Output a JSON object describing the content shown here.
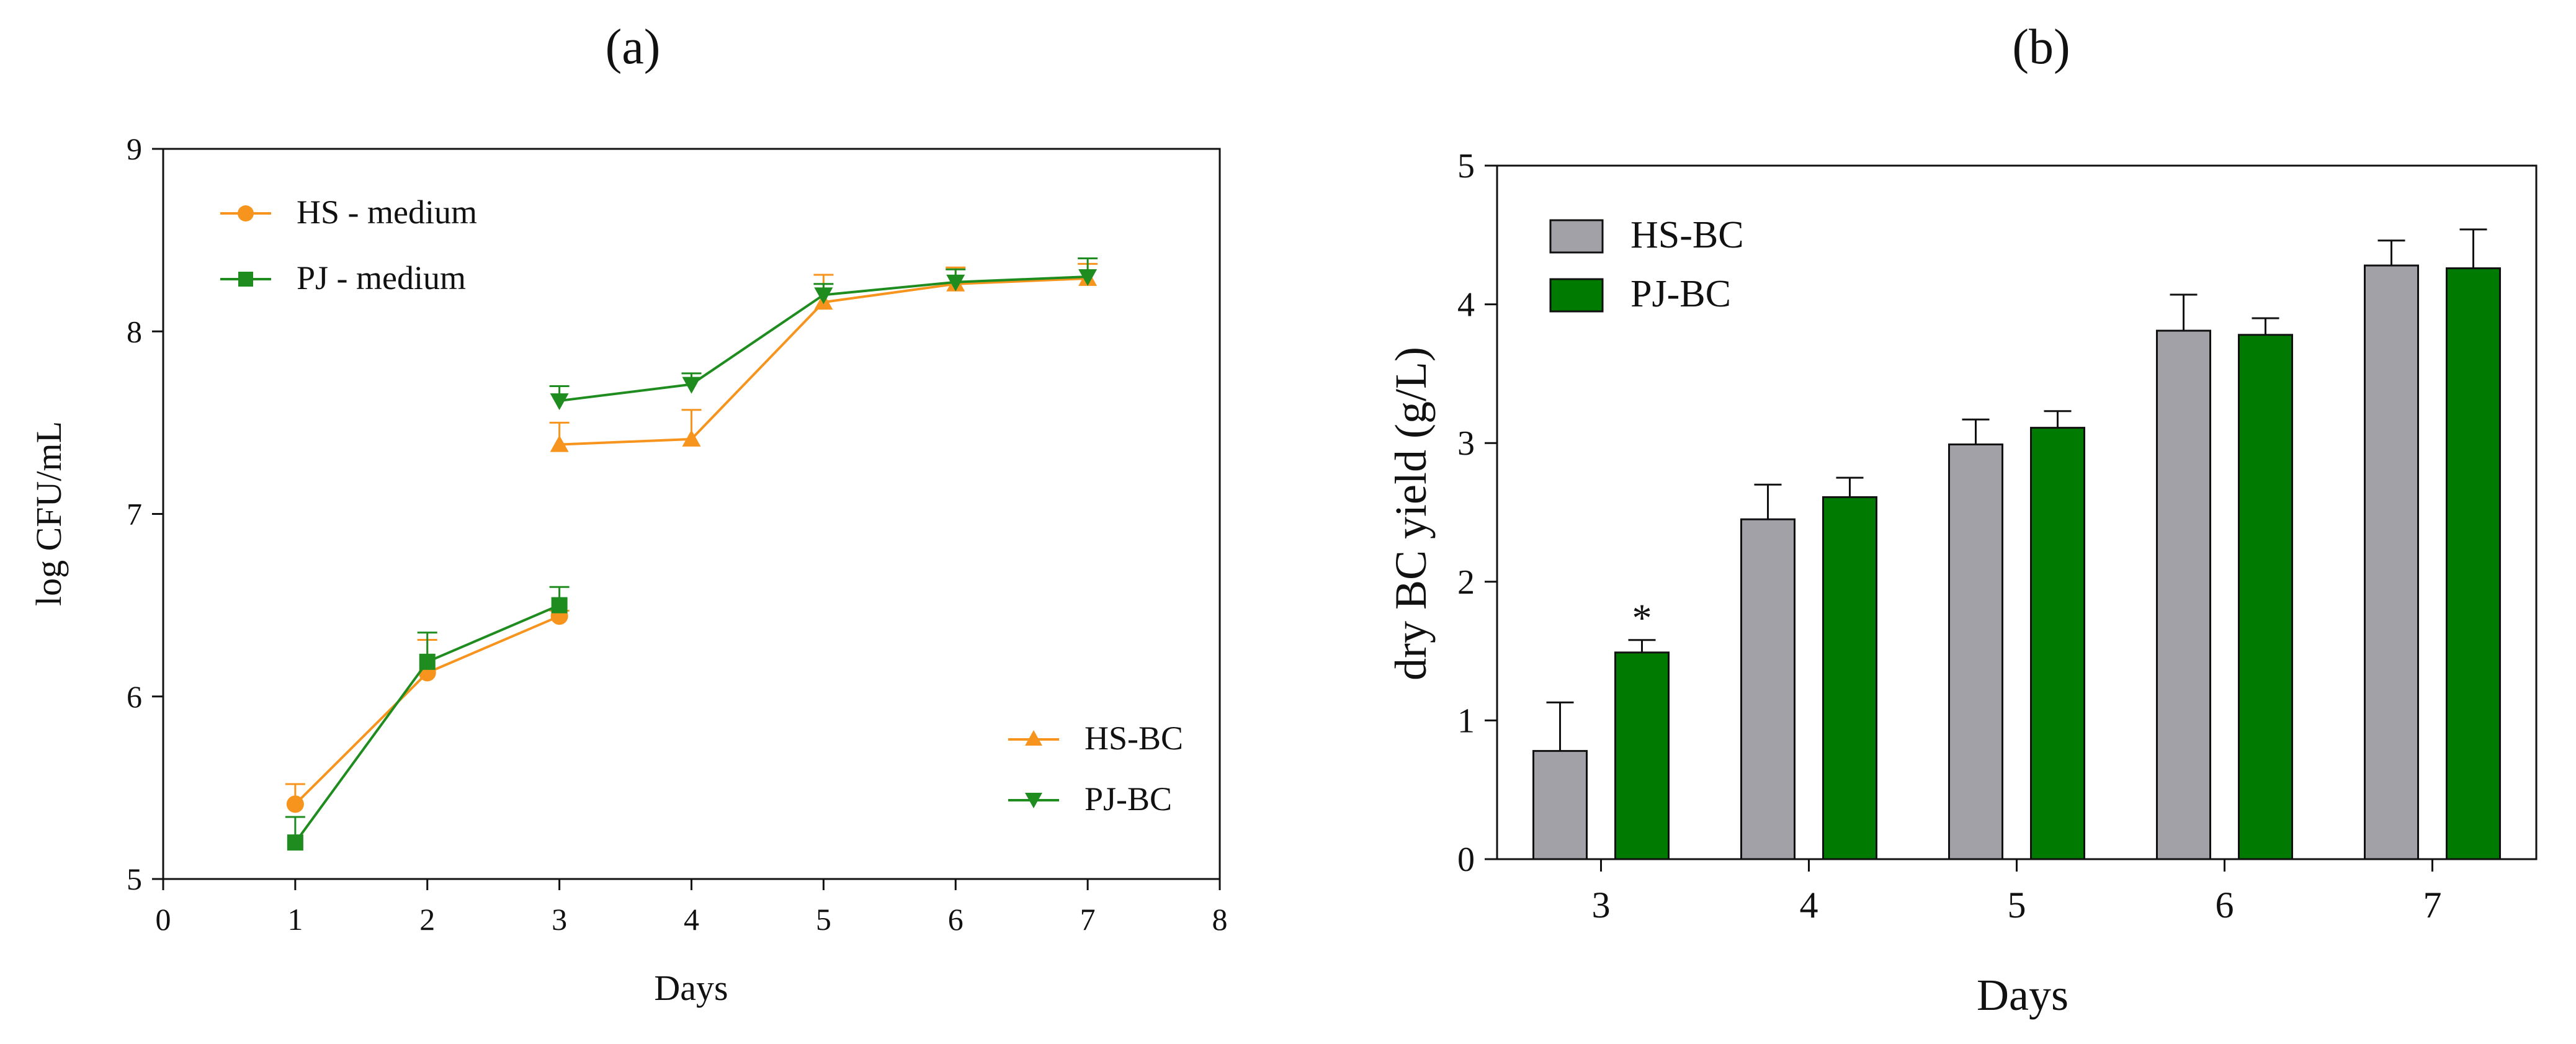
{
  "chart_data": [
    {
      "type": "line",
      "panel_label": "a",
      "title": "(a)",
      "xlabel": "Days",
      "ylabel": "log CFU/mL",
      "xlim": [
        0,
        8
      ],
      "ylim": [
        5,
        9
      ],
      "xticks": [
        "0",
        "1",
        "2",
        "3",
        "4",
        "5",
        "6",
        "7",
        "8"
      ],
      "yticks": [
        "5",
        "6",
        "7",
        "8",
        "9"
      ],
      "legend_top": {
        "position": "top-left",
        "entries": [
          "HS - medium",
          "PJ - medium"
        ]
      },
      "legend_bottom": {
        "position": "bottom-right",
        "entries": [
          "HS-BC",
          "PJ-BC"
        ]
      },
      "series": [
        {
          "name": "HS - medium",
          "color": "#F7941D",
          "marker": "circle",
          "x": [
            1,
            2,
            3
          ],
          "values": [
            5.41,
            6.13,
            6.44
          ],
          "err": [
            0.11,
            0.18,
            0.03
          ]
        },
        {
          "name": "PJ - medium",
          "color": "#1E8C1E",
          "marker": "square",
          "x": [
            1,
            2,
            3
          ],
          "values": [
            5.2,
            6.19,
            6.5
          ],
          "err": [
            0.14,
            0.16,
            0.1
          ]
        },
        {
          "name": "HS-BC",
          "color": "#F7941D",
          "marker": "triangle-up",
          "x": [
            3,
            4,
            5,
            6,
            7
          ],
          "values": [
            7.38,
            7.41,
            8.16,
            8.26,
            8.29
          ],
          "err": [
            0.12,
            0.16,
            0.15,
            0.09,
            0.08
          ]
        },
        {
          "name": "PJ-BC",
          "color": "#1E8C1E",
          "marker": "triangle-down",
          "x": [
            3,
            4,
            5,
            6,
            7
          ],
          "values": [
            7.62,
            7.71,
            8.2,
            8.27,
            8.3
          ],
          "err": [
            0.08,
            0.06,
            0.06,
            0.07,
            0.1
          ]
        }
      ]
    },
    {
      "type": "bar",
      "panel_label": "b",
      "title": "(b)",
      "xlabel": "Days",
      "ylabel": "dry BC yield (g/L)",
      "ylim": [
        0,
        5
      ],
      "yticks": [
        "0",
        "1",
        "2",
        "3",
        "4",
        "5"
      ],
      "categories": [
        "3",
        "4",
        "5",
        "6",
        "7"
      ],
      "legend": {
        "position": "top-left",
        "entries": [
          "HS-BC",
          "PJ-BC"
        ]
      },
      "series": [
        {
          "name": "HS-BC",
          "color": "#A3A1A8",
          "values": [
            0.78,
            2.45,
            2.99,
            3.81,
            4.28
          ],
          "err": [
            0.35,
            0.25,
            0.18,
            0.26,
            0.18
          ]
        },
        {
          "name": "PJ-BC",
          "color": "#007A00",
          "values": [
            1.49,
            2.61,
            3.11,
            3.78,
            4.26
          ],
          "err": [
            0.09,
            0.14,
            0.12,
            0.12,
            0.28
          ]
        }
      ],
      "annotation": {
        "text": "*",
        "category": "3",
        "series": "PJ-BC"
      }
    }
  ]
}
